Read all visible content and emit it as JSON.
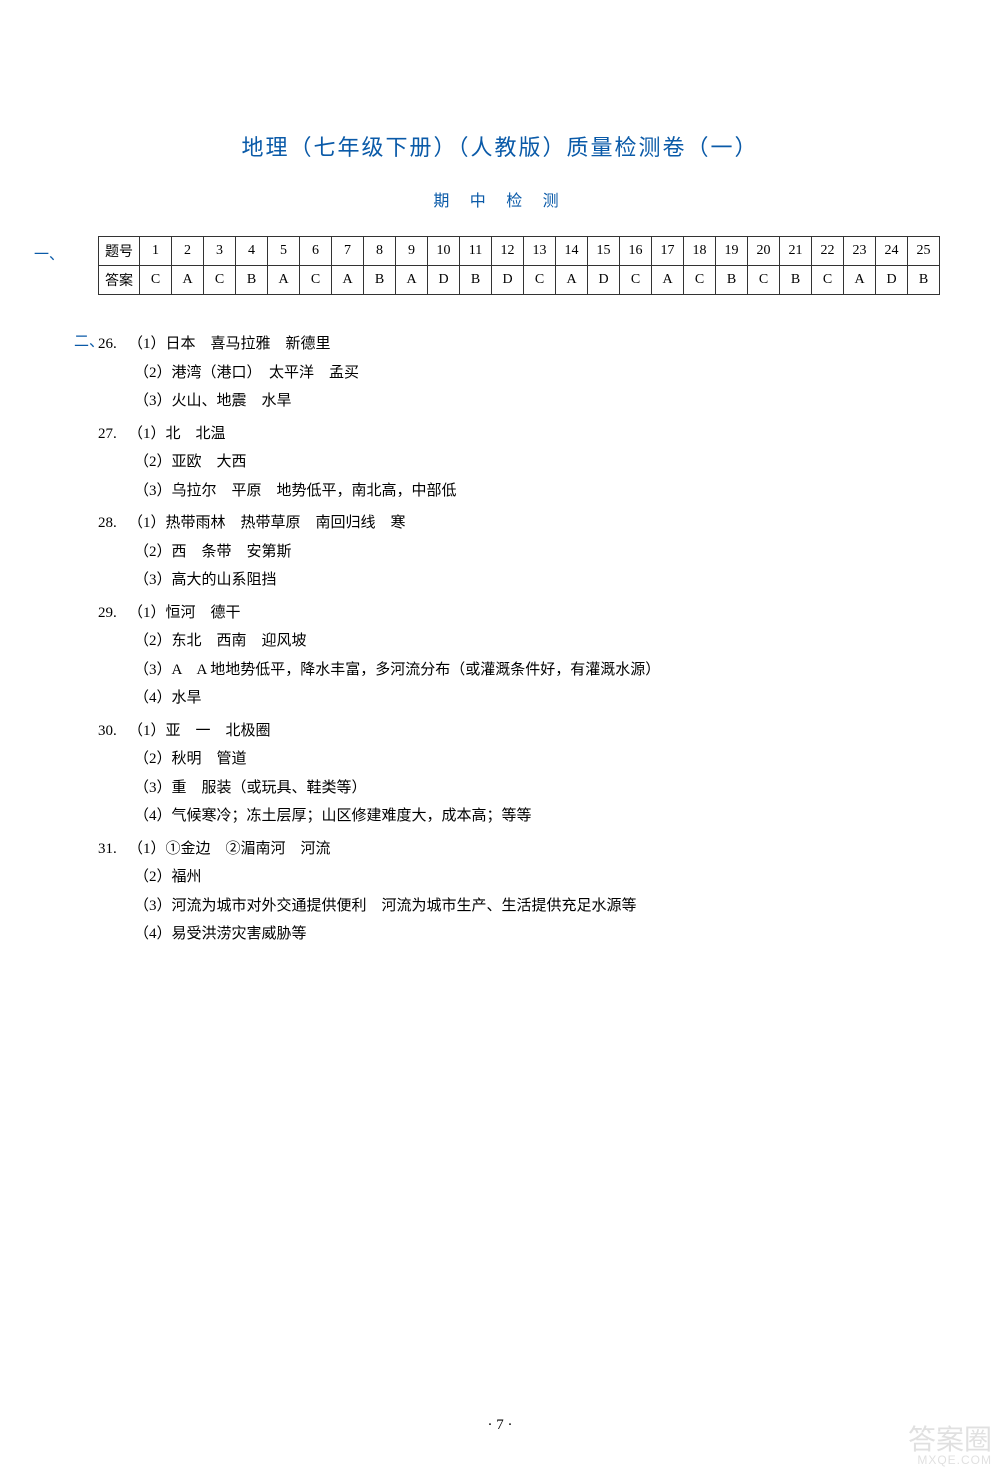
{
  "title": "地理（七年级下册）（人教版）质量检测卷（一）",
  "subtitle": "期 中 检 测",
  "section1_label": "一、",
  "section2_label": "二、",
  "table": {
    "row1_label": "题号",
    "row2_label": "答案",
    "nums": [
      "1",
      "2",
      "3",
      "4",
      "5",
      "6",
      "7",
      "8",
      "9",
      "10",
      "11",
      "12",
      "13",
      "14",
      "15",
      "16",
      "17",
      "18",
      "19",
      "20",
      "21",
      "22",
      "23",
      "24",
      "25"
    ],
    "ans": [
      "C",
      "A",
      "C",
      "B",
      "A",
      "C",
      "A",
      "B",
      "A",
      "D",
      "B",
      "D",
      "C",
      "A",
      "D",
      "C",
      "A",
      "C",
      "B",
      "C",
      "B",
      "C",
      "A",
      "D",
      "B"
    ]
  },
  "q26": {
    "num": "26.",
    "p1": "（1）日本　喜马拉雅　新德里",
    "p2": "（2）港湾（港口）　太平洋　孟买",
    "p3": "（3）火山、地震　水旱"
  },
  "q27": {
    "num": "27.",
    "p1": "（1）北　北温",
    "p2": "（2）亚欧　大西",
    "p3": "（3）乌拉尔　平原　地势低平，南北高，中部低"
  },
  "q28": {
    "num": "28.",
    "p1": "（1）热带雨林　热带草原　南回归线　寒",
    "p2": "（2）西　条带　安第斯",
    "p3": "（3）高大的山系阻挡"
  },
  "q29": {
    "num": "29.",
    "p1": "（1）恒河　德干",
    "p2": "（2）东北　西南　迎风坡",
    "p3": "（3）A　A 地地势低平，降水丰富，多河流分布（或灌溉条件好，有灌溉水源）",
    "p4": "（4）水旱"
  },
  "q30": {
    "num": "30.",
    "p1": "（1）亚　一　北极圈",
    "p2": "（2）秋明　管道",
    "p3": "（3）重　服装（或玩具、鞋类等）",
    "p4": "（4）气候寒冷；冻土层厚；山区修建难度大，成本高；等等"
  },
  "q31": {
    "num": "31.",
    "p1": "（1）①金边　②湄南河　河流",
    "p2": "（2）福州",
    "p3": "（3）河流为城市对外交通提供便利　河流为城市生产、生活提供充足水源等",
    "p4": "（4）易受洪涝灾害威胁等"
  },
  "pagenum": "·  7  ·",
  "watermark": {
    "t1": "答案圈",
    "t2": "MXQE.COM"
  }
}
